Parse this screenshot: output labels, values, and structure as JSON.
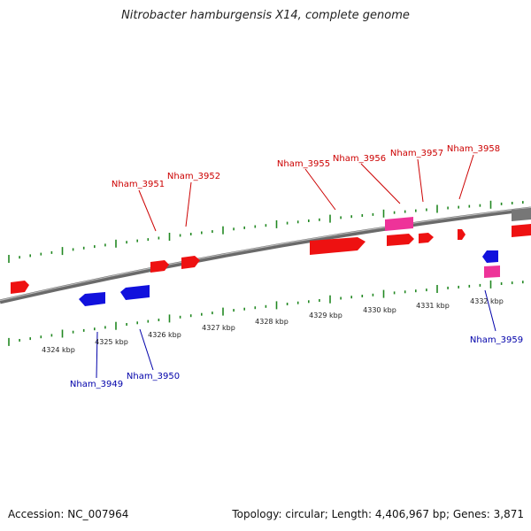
{
  "title": "Nitrobacter hamburgensis X14, complete genome",
  "footer": {
    "accession": "Accession: NC_007964",
    "summary": "Topology: circular; Length: 4,406,967 bp; Genes: 3,871"
  },
  "colors": {
    "forward_gene": "#ee1111",
    "reverse_gene": "#1111dd",
    "rna_gene": "#ee3399",
    "forward_label": "#cc0000",
    "reverse_label": "#0000aa",
    "tick": "#228822",
    "backbone": "#777777"
  },
  "kbp_labels": [
    "4324 kbp",
    "4325 kbp",
    "4326 kbp",
    "4327 kbp",
    "4328 kbp",
    "4329 kbp",
    "4330 kbp",
    "4331 kbp",
    "4332 kbp"
  ],
  "forward_labels": [
    "Nham_3951",
    "Nham_3952",
    "Nham_3955",
    "Nham_3956",
    "Nham_3957",
    "Nham_3958"
  ],
  "reverse_labels": [
    "Nham_3949",
    "Nham_3950",
    "Nham_3959"
  ]
}
